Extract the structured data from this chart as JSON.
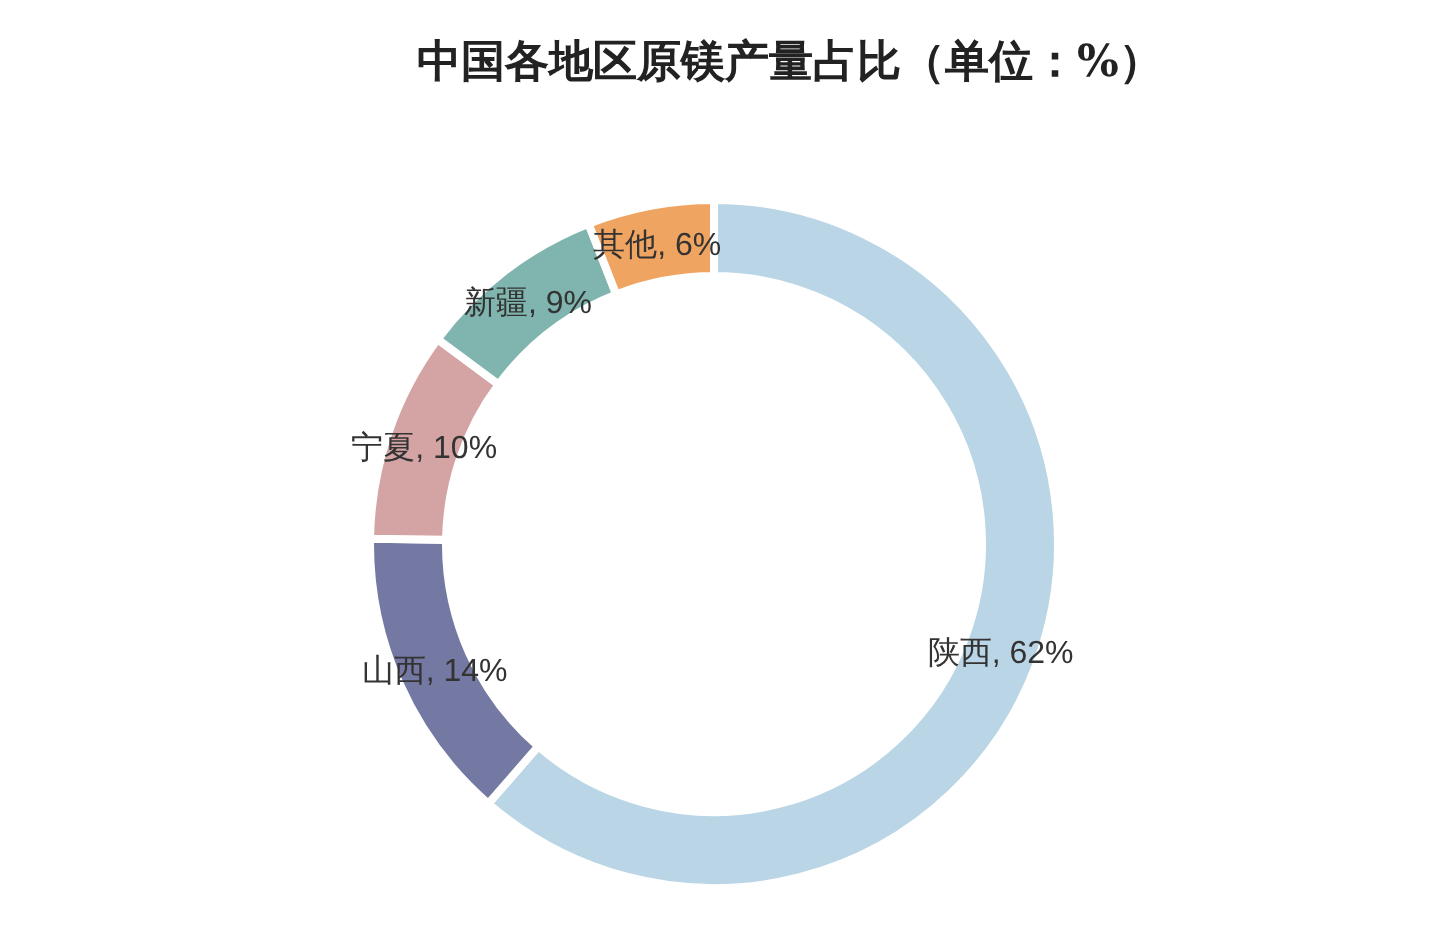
{
  "chart_data": {
    "type": "donut",
    "title": "中国各地区原镁产量占比（单位：%）",
    "categories": [
      "陕西",
      "山西",
      "宁夏",
      "新疆",
      "其他"
    ],
    "values": [
      62,
      14,
      10,
      9,
      6
    ],
    "colors": [
      "#b9d5e6",
      "#7479a3",
      "#d4a3a4",
      "#7fb5ae",
      "#f0a461"
    ],
    "value_labels": [
      ", 62%",
      ", 14%",
      ", 10%",
      ", 9%",
      ", 6%"
    ],
    "legend": false
  }
}
